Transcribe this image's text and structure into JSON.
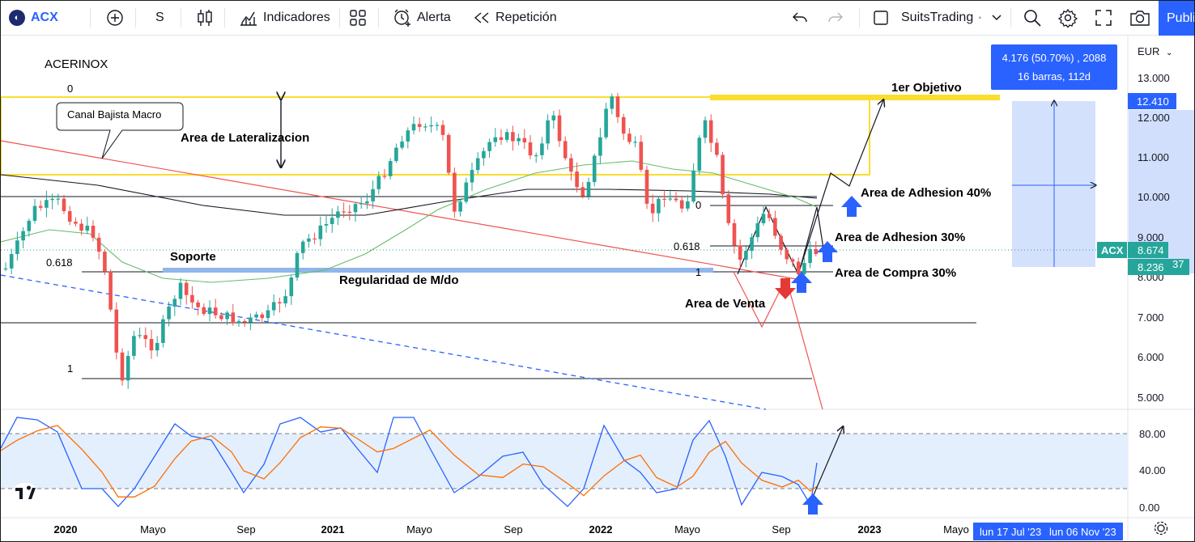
{
  "toolbar": {
    "symbol": "ACX",
    "interval": "S",
    "indicators_label": "Indicadores",
    "alert_label": "Alerta",
    "replay_label": "Repetición",
    "layout_name": "SuitsTrading",
    "publish_label": "Publicar"
  },
  "chart": {
    "instrument_name": "ACERINOX",
    "currency": "EUR",
    "price_ticks": [
      "13.000",
      "12.000",
      "11.000",
      "10.000",
      "9.000",
      "8.000",
      "7.000",
      "6.000",
      "5.000"
    ],
    "osc_ticks": [
      "80.00",
      "40.00",
      "0.00"
    ],
    "time_labels": [
      "2020",
      "Mayo",
      "Sep",
      "2021",
      "Mayo",
      "Sep",
      "2022",
      "Mayo",
      "Sep",
      "2023",
      "Mayo"
    ],
    "badges": {
      "target": "12.410",
      "symbol": "ACX",
      "last": "8.674",
      "prev": "8.236",
      "prev_suffix": "37"
    },
    "measure": {
      "line1": "4.176 (50.70%) , 2088",
      "line2": "16 barras, 112d"
    },
    "annotations": {
      "canal": "Canal Bajista Macro",
      "lateral": "Area de Lateralizacion",
      "soporte": "Soporte",
      "regularidad": "Regularidad de M/do",
      "objetivo": "1er Objetivo",
      "adhesion40": "Area de Adhesion 40%",
      "adhesion30": "Area de Adhesion 30%",
      "compra30": "Area de Compra 30%",
      "venta": "Area de Venta"
    },
    "fib_left": {
      "f0": "0",
      "f618": "0.618",
      "f1": "1"
    },
    "fib_right": {
      "f0": "0",
      "f618": "0.618",
      "f1": "1"
    },
    "date_range": {
      "start": "lun 17 Jul '23",
      "end": "lun 06 Nov '23"
    },
    "colors": {
      "up": "#26a69a",
      "down": "#ef5350",
      "fib": "#fbdd2f",
      "blue": "#2962ff"
    }
  }
}
